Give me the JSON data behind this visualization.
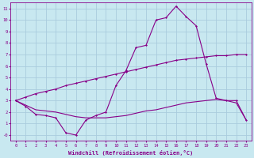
{
  "xlabel": "Windchill (Refroidissement éolien,°C)",
  "background_color": "#c8e8f0",
  "grid_color": "#aaccdd",
  "line_color": "#880088",
  "xlim": [
    -0.5,
    23.5
  ],
  "ylim": [
    -0.5,
    11.5
  ],
  "xticks": [
    0,
    1,
    2,
    3,
    4,
    5,
    6,
    7,
    8,
    9,
    10,
    11,
    12,
    13,
    14,
    15,
    16,
    17,
    18,
    19,
    20,
    21,
    22,
    23
  ],
  "yticks": [
    0,
    1,
    2,
    3,
    4,
    5,
    6,
    7,
    8,
    9,
    10,
    11
  ],
  "ytick_labels": [
    "-0",
    "1",
    "2",
    "3",
    "4",
    "5",
    "6",
    "7",
    "8",
    "9",
    "10",
    "11"
  ],
  "curve1_x": [
    0,
    1,
    2,
    3,
    4,
    5,
    6,
    7,
    8,
    9,
    10,
    11,
    12,
    13,
    14,
    15,
    16,
    17,
    18,
    19,
    20,
    21,
    22,
    23
  ],
  "curve1_y": [
    3.0,
    3.3,
    3.6,
    3.8,
    4.0,
    4.3,
    4.5,
    4.7,
    4.9,
    5.1,
    5.3,
    5.5,
    5.7,
    5.9,
    6.1,
    6.3,
    6.5,
    6.6,
    6.7,
    6.8,
    6.9,
    6.9,
    7.0,
    7.0
  ],
  "curve2_x": [
    0,
    1,
    2,
    3,
    4,
    5,
    6,
    7,
    8,
    9,
    10,
    11,
    12,
    13,
    14,
    15,
    16,
    17,
    18,
    19,
    20,
    21,
    22,
    23
  ],
  "curve2_y": [
    3.0,
    2.5,
    1.8,
    1.7,
    1.5,
    0.2,
    0.0,
    1.3,
    1.7,
    2.0,
    4.3,
    5.6,
    7.6,
    7.8,
    10.0,
    10.2,
    11.2,
    10.3,
    9.5,
    6.2,
    3.2,
    3.0,
    3.0,
    1.3
  ],
  "curve3_x": [
    0,
    2,
    3,
    4,
    5,
    6,
    7,
    8,
    9,
    10,
    11,
    12,
    13,
    14,
    15,
    16,
    17,
    18,
    19,
    20,
    21,
    22,
    23
  ],
  "curve3_y": [
    3.0,
    2.2,
    2.1,
    2.0,
    1.8,
    1.6,
    1.5,
    1.5,
    1.5,
    1.6,
    1.7,
    1.9,
    2.1,
    2.2,
    2.4,
    2.6,
    2.8,
    2.9,
    3.0,
    3.1,
    3.0,
    2.8,
    1.3
  ]
}
